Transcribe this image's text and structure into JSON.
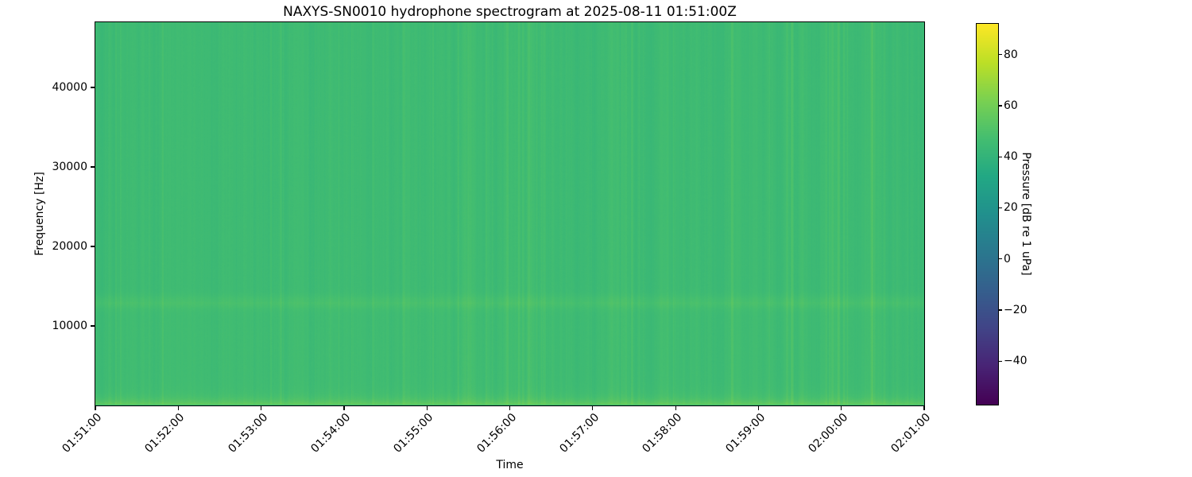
{
  "chart_data": {
    "type": "heatmap",
    "title": "NAXYS-SN0010 hydrophone spectrogram at 2025-08-11 01:51:00Z",
    "xlabel": "Time",
    "ylabel": "Frequency [Hz]",
    "x_tick_labels": [
      "01:51:00",
      "01:52:00",
      "01:53:00",
      "01:54:00",
      "01:55:00",
      "01:56:00",
      "01:57:00",
      "01:58:00",
      "01:59:00",
      "02:00:00",
      "02:01:00"
    ],
    "x_range": [
      "01:51:00",
      "02:01:00"
    ],
    "x_tick_interval_seconds": 60,
    "y_tick_values_hz": [
      10000,
      20000,
      30000,
      40000
    ],
    "y_tick_labels": [
      "10000",
      "20000",
      "30000",
      "40000"
    ],
    "y_range_hz": [
      0,
      48200
    ],
    "grid": false,
    "legend": null,
    "colormap": "viridis",
    "colorbar": {
      "label": "Pressure [dB re 1 uPa]",
      "tick_values": [
        80,
        60,
        40,
        20,
        0,
        -20,
        -40
      ],
      "tick_labels": [
        "80",
        "60",
        "40",
        "20",
        "0",
        "−20",
        "−40"
      ],
      "vmin": -57,
      "vmax": 92,
      "position": "right"
    },
    "heatmap_model": {
      "background_level_db": 44.8,
      "column_noise_db": 1.8,
      "pixel_noise_db": 1.0,
      "bands": [
        {
          "name": "low-frequency-broadband-band",
          "center_hz": 0,
          "boost_db": 12,
          "decay_hz": 700
        },
        {
          "name": "mid-band-13khz",
          "center_hz": 13000,
          "boost_db": 3.2,
          "sigma_hz": 900
        },
        {
          "name": "below-13khz-elevation",
          "below_hz": 13000,
          "boost_db": 0.7
        }
      ],
      "dominant_color_hex": "#35b873",
      "low_band_color_hex": "#72ce56"
    }
  }
}
